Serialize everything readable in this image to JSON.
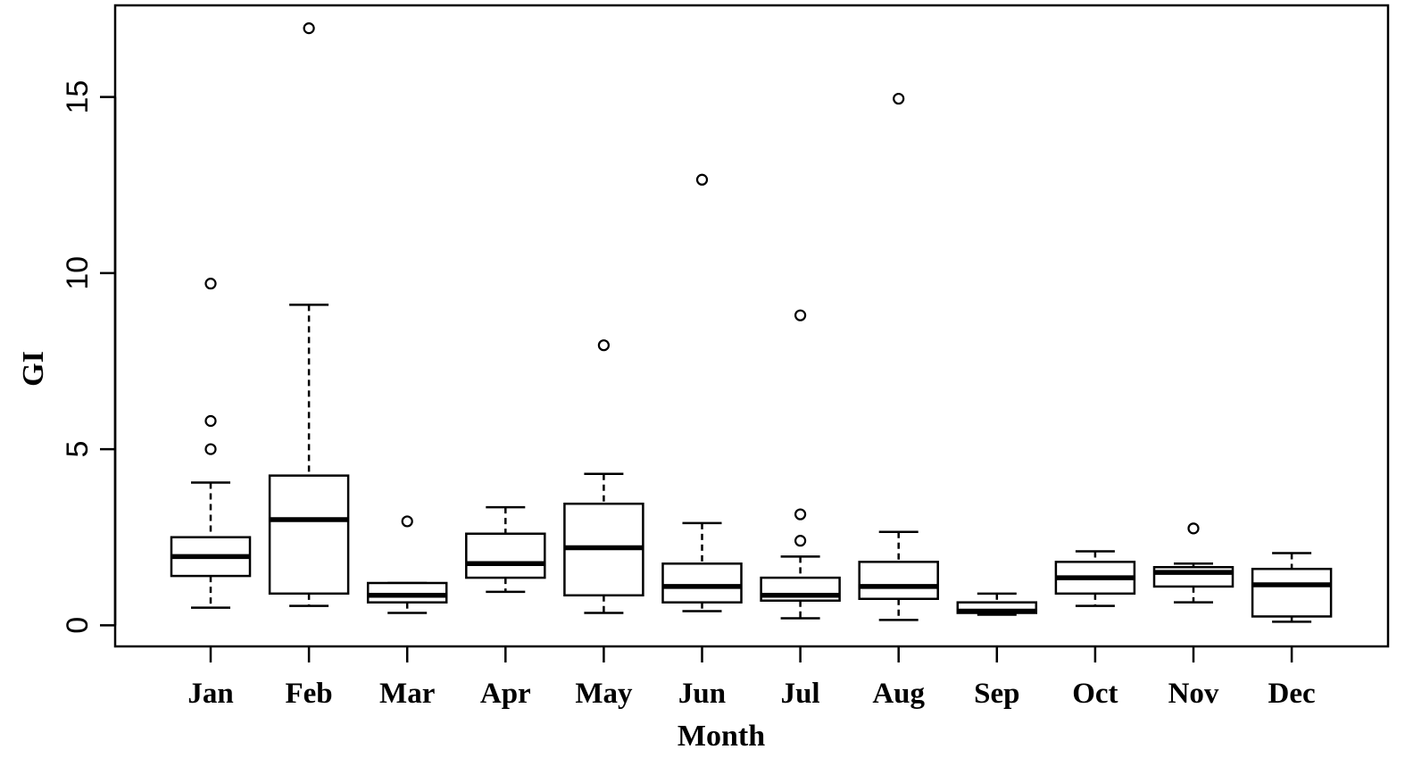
{
  "chart_data": {
    "type": "boxplot",
    "xlabel": "Month",
    "ylabel": "GI",
    "ylim": [
      -0.6,
      17.6
    ],
    "yticks": [
      0,
      5,
      10,
      15
    ],
    "categories": [
      "Jan",
      "Feb",
      "Mar",
      "Apr",
      "May",
      "Jun",
      "Jul",
      "Aug",
      "Sep",
      "Oct",
      "Nov",
      "Dec"
    ],
    "boxes": [
      {
        "min": 0.5,
        "q1": 1.4,
        "median": 1.95,
        "q3": 2.5,
        "max": 4.05,
        "outliers": [
          5.0,
          5.8,
          9.7
        ]
      },
      {
        "min": 0.55,
        "q1": 0.9,
        "median": 3.0,
        "q3": 4.25,
        "max": 9.1,
        "outliers": [
          16.95
        ]
      },
      {
        "min": 0.35,
        "q1": 0.65,
        "median": 0.85,
        "q3": 1.2,
        "max": 1.2,
        "outliers": [
          2.95
        ]
      },
      {
        "min": 0.95,
        "q1": 1.35,
        "median": 1.75,
        "q3": 2.6,
        "max": 3.35,
        "outliers": []
      },
      {
        "min": 0.35,
        "q1": 0.85,
        "median": 2.2,
        "q3": 3.45,
        "max": 4.3,
        "outliers": [
          7.95
        ]
      },
      {
        "min": 0.4,
        "q1": 0.65,
        "median": 1.1,
        "q3": 1.75,
        "max": 2.9,
        "outliers": [
          12.65
        ]
      },
      {
        "min": 0.2,
        "q1": 0.7,
        "median": 0.85,
        "q3": 1.35,
        "max": 1.95,
        "outliers": [
          2.4,
          3.15,
          8.8
        ]
      },
      {
        "min": 0.15,
        "q1": 0.75,
        "median": 1.1,
        "q3": 1.8,
        "max": 2.65,
        "outliers": [
          14.95
        ]
      },
      {
        "min": 0.3,
        "q1": 0.35,
        "median": 0.4,
        "q3": 0.65,
        "max": 0.9,
        "outliers": []
      },
      {
        "min": 0.55,
        "q1": 0.9,
        "median": 1.35,
        "q3": 1.8,
        "max": 2.1,
        "outliers": []
      },
      {
        "min": 0.65,
        "q1": 1.1,
        "median": 1.5,
        "q3": 1.65,
        "max": 1.75,
        "outliers": [
          2.75
        ]
      },
      {
        "min": 0.1,
        "q1": 0.25,
        "median": 1.15,
        "q3": 1.6,
        "max": 2.05,
        "outliers": []
      }
    ],
    "grid": false,
    "legend": "none"
  }
}
